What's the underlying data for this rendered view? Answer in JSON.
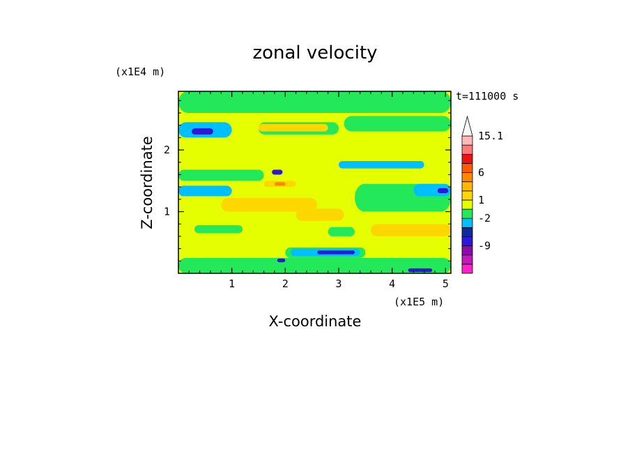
{
  "chart_data": {
    "type": "heatmap",
    "title": "zonal velocity",
    "xlabel": "X-coordinate",
    "ylabel": "Z-coordinate",
    "x_unit": "(x1E5 m)",
    "y_unit": "(x1E4 m)",
    "time_label": "t=111000 s",
    "xlim": [
      0,
      5.1
    ],
    "ylim": [
      0,
      2.95
    ],
    "x_ticks": [
      "1",
      "2",
      "3",
      "4",
      "5"
    ],
    "y_ticks": [
      "1",
      "2"
    ],
    "colorbar": {
      "labels": [
        "15.1",
        "6",
        "1",
        "-2",
        "-9"
      ],
      "levels": [
        {
          "color": "#ff22c8"
        },
        {
          "color": "#c01ab8"
        },
        {
          "color": "#8c0aa8"
        },
        {
          "color": "#2c18d8"
        },
        {
          "color": "#0f2a9a"
        },
        {
          "color": "#00bfff"
        },
        {
          "color": "#22e85a"
        },
        {
          "color": "#e6ff00"
        },
        {
          "color": "#ffd700"
        },
        {
          "color": "#ffb800"
        },
        {
          "color": "#ff8800"
        },
        {
          "color": "#ff5a00"
        },
        {
          "color": "#ee1111"
        },
        {
          "color": "#ff7a7a"
        },
        {
          "color": "#ffb9b9"
        },
        {
          "color": "#f7f7f7"
        }
      ]
    },
    "field": {
      "background": "#e6ff00",
      "bands": [
        {
          "color": "#22e85a",
          "x0": 0.0,
          "x1": 5.1,
          "z0": 0.0,
          "z1": 0.25
        },
        {
          "color": "#22e85a",
          "x0": 0.0,
          "x1": 5.1,
          "z0": 2.6,
          "z1": 2.95
        },
        {
          "color": "#00bfff",
          "x0": 0.0,
          "x1": 1.0,
          "z0": 2.2,
          "z1": 2.45
        },
        {
          "color": "#2c18d8",
          "x0": 0.25,
          "x1": 0.65,
          "z0": 2.25,
          "z1": 2.35
        },
        {
          "color": "#22e85a",
          "x0": 1.5,
          "x1": 3.0,
          "z0": 2.25,
          "z1": 2.45
        },
        {
          "color": "#ffd700",
          "x0": 1.5,
          "x1": 2.8,
          "z0": 2.3,
          "z1": 2.42
        },
        {
          "color": "#22e85a",
          "x0": 3.1,
          "x1": 5.1,
          "z0": 2.3,
          "z1": 2.55
        },
        {
          "color": "#00bfff",
          "x0": 3.0,
          "x1": 4.6,
          "z0": 1.7,
          "z1": 1.82
        },
        {
          "color": "#22e85a",
          "x0": 0.0,
          "x1": 1.6,
          "z0": 1.5,
          "z1": 1.68
        },
        {
          "color": "#00bfff",
          "x0": 0.0,
          "x1": 1.0,
          "z0": 1.25,
          "z1": 1.42
        },
        {
          "color": "#2c18d8",
          "x0": 1.75,
          "x1": 1.95,
          "z0": 1.6,
          "z1": 1.68
        },
        {
          "color": "#ffd700",
          "x0": 1.6,
          "x1": 2.2,
          "z0": 1.4,
          "z1": 1.5
        },
        {
          "color": "#ff8800",
          "x0": 1.8,
          "x1": 2.0,
          "z0": 1.42,
          "z1": 1.48
        },
        {
          "color": "#22e85a",
          "x0": 3.3,
          "x1": 5.1,
          "z0": 1.0,
          "z1": 1.45
        },
        {
          "color": "#00bfff",
          "x0": 4.4,
          "x1": 5.1,
          "z0": 1.25,
          "z1": 1.45
        },
        {
          "color": "#2c18d8",
          "x0": 4.85,
          "x1": 5.05,
          "z0": 1.3,
          "z1": 1.38
        },
        {
          "color": "#ffd700",
          "x0": 2.2,
          "x1": 3.1,
          "z0": 0.85,
          "z1": 1.05
        },
        {
          "color": "#ffd700",
          "x0": 3.6,
          "x1": 5.1,
          "z0": 0.6,
          "z1": 0.8
        },
        {
          "color": "#22e85a",
          "x0": 0.3,
          "x1": 1.2,
          "z0": 0.65,
          "z1": 0.78
        },
        {
          "color": "#22e85a",
          "x0": 2.8,
          "x1": 3.3,
          "z0": 0.6,
          "z1": 0.75
        },
        {
          "color": "#22e85a",
          "x0": 2.0,
          "x1": 3.5,
          "z0": 0.25,
          "z1": 0.42
        },
        {
          "color": "#00bfff",
          "x0": 2.1,
          "x1": 3.4,
          "z0": 0.28,
          "z1": 0.4
        },
        {
          "color": "#2c18d8",
          "x0": 2.6,
          "x1": 3.3,
          "z0": 0.31,
          "z1": 0.37
        },
        {
          "color": "#2c18d8",
          "x0": 1.85,
          "x1": 2.0,
          "z0": 0.18,
          "z1": 0.24
        },
        {
          "color": "#2c18d8",
          "x0": 4.3,
          "x1": 4.75,
          "z0": 0.02,
          "z1": 0.08
        },
        {
          "color": "#ffd700",
          "x0": 0.8,
          "x1": 2.6,
          "z0": 1.0,
          "z1": 1.22
        }
      ]
    }
  }
}
